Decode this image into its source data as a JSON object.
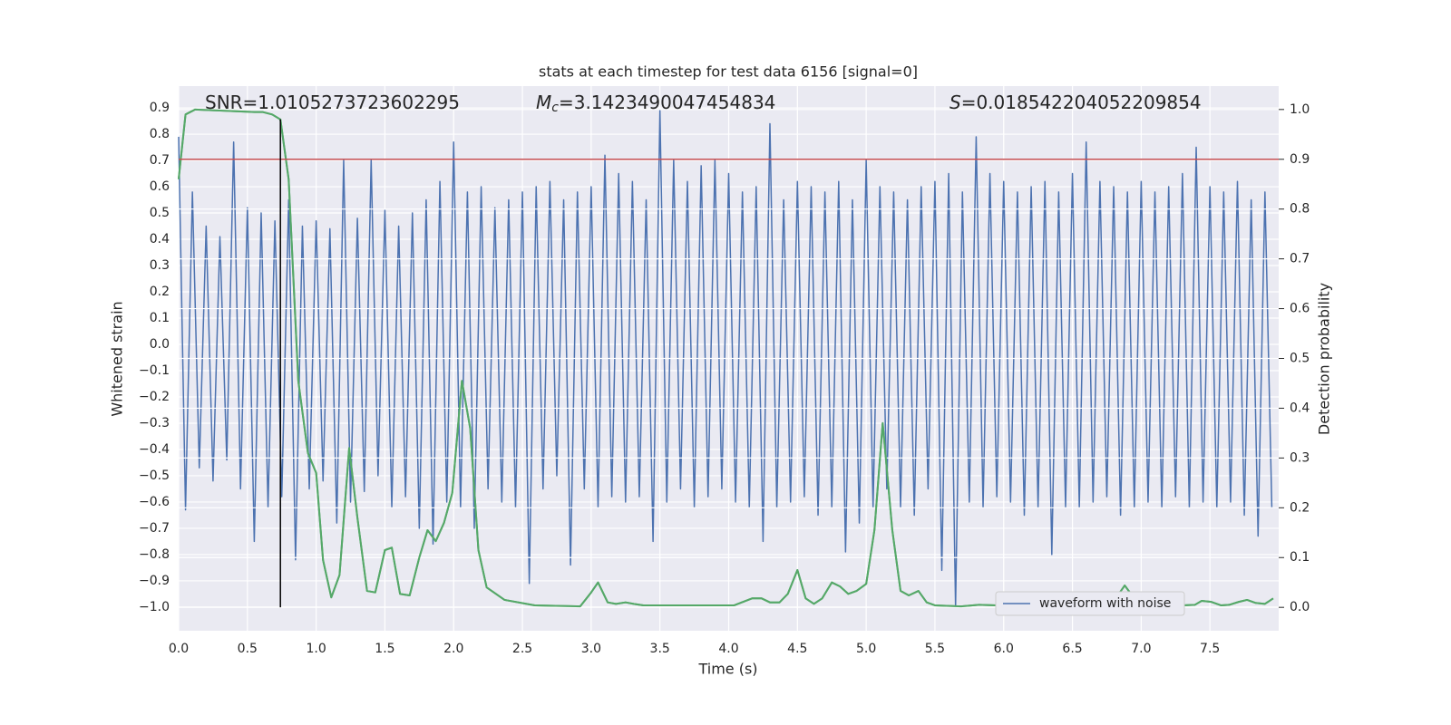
{
  "chart_data": {
    "type": "line",
    "title": "stats at each timestep for test data 6156 [signal=0]",
    "x_label": "Time (s)",
    "y_label": "Whitened strain",
    "y2_label": "Detection probability",
    "annotations": [
      {
        "text": "SNR=1.0105273723602295"
      },
      {
        "symbol": "M",
        "subscript": "c",
        "text": "=3.1423490047454834"
      },
      {
        "symbol": "S",
        "text": "=0.018542204052209854"
      }
    ],
    "xlim": [
      0,
      8
    ],
    "ylim": [
      -1.09,
      0.983
    ],
    "y2lim": [
      -0.047,
      1.047
    ],
    "xticks": [
      {
        "value": 0,
        "label": "0.0"
      },
      0.5,
      {
        "value": 1,
        "label": "1.0"
      },
      1.5,
      {
        "value": 2,
        "label": "2.0"
      },
      2.5,
      {
        "value": 3,
        "label": "3.0"
      },
      3.5,
      {
        "value": 4,
        "label": "4.0"
      },
      4.5,
      {
        "value": 5,
        "label": "5.0"
      },
      5.5,
      {
        "value": 6,
        "label": "6.0"
      },
      6.5,
      {
        "value": 7,
        "label": "7.0"
      },
      7.5
    ],
    "yticks": [
      {
        "value": -1.0,
        "label": "−1.0"
      },
      {
        "value": -0.9,
        "label": "−0.9"
      },
      {
        "value": -0.8,
        "label": "−0.8"
      },
      {
        "value": -0.7,
        "label": "−0.7"
      },
      {
        "value": -0.6,
        "label": "−0.6"
      },
      {
        "value": -0.5,
        "label": "−0.5"
      },
      {
        "value": -0.4,
        "label": "−0.4"
      },
      {
        "value": -0.3,
        "label": "−0.3"
      },
      {
        "value": -0.2,
        "label": "−0.2"
      },
      {
        "value": -0.1,
        "label": "−0.1"
      },
      {
        "value": 0,
        "label": "0.0"
      },
      0.1,
      0.2,
      0.3,
      0.4,
      0.5,
      0.6,
      0.7,
      0.8,
      0.9
    ],
    "y2ticks": [
      {
        "value": 0,
        "label": "0.0"
      },
      0.1,
      0.2,
      0.3,
      0.4,
      0.5,
      0.6,
      0.7,
      0.8,
      0.9,
      {
        "value": 1,
        "label": "1.0"
      }
    ],
    "grid": true,
    "legend": "lower right",
    "hline": {
      "value": 0.9,
      "axis": "y2",
      "color": "#c44e52"
    },
    "vline": {
      "x": 0.74,
      "ymin": 0,
      "ymax": 0.98,
      "axis": "y2",
      "color": "#000000"
    },
    "series": [
      {
        "name": "waveform with noise",
        "color": "#4c72b0",
        "x": [
          0,
          0.05,
          0.1,
          0.15,
          0.2,
          0.25,
          0.3,
          0.35,
          0.4,
          0.45,
          0.5,
          0.55,
          0.6,
          0.65,
          0.7,
          0.75,
          0.8,
          0.85,
          0.9,
          0.95,
          1,
          1.05,
          1.1,
          1.15,
          1.2,
          1.25,
          1.3,
          1.35,
          1.4,
          1.45,
          1.5,
          1.55,
          1.6,
          1.65,
          1.7,
          1.75,
          1.8,
          1.85,
          1.9,
          1.95,
          2,
          2.05,
          2.1,
          2.15,
          2.2,
          2.25,
          2.3,
          2.35,
          2.4,
          2.45,
          2.5,
          2.55,
          2.6,
          2.65,
          2.7,
          2.75,
          2.8,
          2.85,
          2.9,
          2.95,
          3,
          3.05,
          3.1,
          3.15,
          3.2,
          3.25,
          3.3,
          3.35,
          3.4,
          3.45,
          3.5,
          3.55,
          3.6,
          3.65,
          3.7,
          3.75,
          3.8,
          3.85,
          3.9,
          3.95,
          4,
          4.05,
          4.1,
          4.15,
          4.2,
          4.25,
          4.3,
          4.35,
          4.4,
          4.45,
          4.5,
          4.55,
          4.6,
          4.65,
          4.7,
          4.75,
          4.8,
          4.85,
          4.9,
          4.95,
          5,
          5.05,
          5.1,
          5.15,
          5.2,
          5.25,
          5.3,
          5.35,
          5.4,
          5.45,
          5.5,
          5.55,
          5.6,
          5.65,
          5.7,
          5.75,
          5.8,
          5.85,
          5.9,
          5.95,
          6,
          6.05,
          6.1,
          6.15,
          6.2,
          6.25,
          6.3,
          6.35,
          6.4,
          6.45,
          6.5,
          6.55,
          6.6,
          6.65,
          6.7,
          6.75,
          6.8,
          6.85,
          6.9,
          6.95,
          7,
          7.05,
          7.1,
          7.15,
          7.2,
          7.25,
          7.3,
          7.35,
          7.4,
          7.45,
          7.5,
          7.55,
          7.6,
          7.65,
          7.7,
          7.75,
          7.8,
          7.85,
          7.9,
          7.95
        ],
        "values": [
          0.79,
          -0.63,
          0.58,
          -0.47,
          0.45,
          -0.52,
          0.41,
          -0.44,
          0.77,
          -0.55,
          0.52,
          -0.75,
          0.5,
          -0.62,
          0.47,
          -0.58,
          0.55,
          -0.82,
          0.45,
          -0.55,
          0.47,
          -0.52,
          0.44,
          -0.68,
          0.7,
          -0.6,
          0.48,
          -0.56,
          0.7,
          -0.5,
          0.51,
          -0.62,
          0.45,
          -0.58,
          0.5,
          -0.7,
          0.55,
          -0.76,
          0.62,
          -0.6,
          0.77,
          -0.62,
          0.58,
          -0.7,
          0.6,
          -0.55,
          0.52,
          -0.6,
          0.55,
          -0.62,
          0.58,
          -0.91,
          0.6,
          -0.55,
          0.62,
          -0.5,
          0.55,
          -0.84,
          0.58,
          -0.55,
          0.6,
          -0.62,
          0.72,
          -0.58,
          0.65,
          -0.6,
          0.62,
          -0.58,
          0.55,
          -0.75,
          0.89,
          -0.6,
          0.7,
          -0.55,
          0.62,
          -0.62,
          0.68,
          -0.58,
          0.7,
          -0.55,
          0.65,
          -0.6,
          0.58,
          -0.62,
          0.6,
          -0.75,
          0.84,
          -0.62,
          0.55,
          -0.6,
          0.62,
          -0.58,
          0.6,
          -0.65,
          0.58,
          -0.62,
          0.62,
          -0.79,
          0.55,
          -0.68,
          0.7,
          -0.62,
          0.6,
          -0.55,
          0.58,
          -0.62,
          0.55,
          -0.65,
          0.6,
          -0.55,
          0.62,
          -0.86,
          0.65,
          -1.0,
          0.58,
          -0.6,
          0.79,
          -0.62,
          0.65,
          -0.58,
          0.62,
          -0.6,
          0.58,
          -0.65,
          0.6,
          -0.62,
          0.62,
          -0.8,
          0.58,
          -0.62,
          0.65,
          -0.62,
          0.77,
          -0.6,
          0.62,
          -0.58,
          0.6,
          -0.65,
          0.58,
          -0.62,
          0.62,
          -0.6,
          0.58,
          -0.62,
          0.6,
          -0.58,
          0.65,
          -0.62,
          0.75,
          -0.6,
          0.6,
          -0.62,
          0.58,
          -0.6,
          0.62,
          -0.65,
          0.55,
          -0.73,
          0.58,
          -0.62
        ]
      },
      {
        "color": "#55a868",
        "axis": "y2",
        "x": [
          0,
          0.05,
          0.12,
          0.55,
          0.61,
          0.68,
          0.74,
          0.8,
          0.87,
          0.94,
          1.0,
          1.05,
          1.11,
          1.17,
          1.24,
          1.3,
          1.37,
          1.43,
          1.5,
          1.55,
          1.61,
          1.68,
          1.75,
          1.81,
          1.87,
          1.93,
          1.99,
          2.06,
          2.12,
          2.18,
          2.24,
          2.37,
          2.59,
          2.92,
          3.0,
          3.05,
          3.12,
          3.18,
          3.25,
          3.31,
          3.38,
          3.71,
          4.04,
          4.17,
          4.24,
          4.3,
          4.37,
          4.43,
          4.5,
          4.56,
          4.62,
          4.68,
          4.75,
          4.81,
          4.87,
          4.93,
          5.0,
          5.06,
          5.12,
          5.19,
          5.25,
          5.31,
          5.38,
          5.44,
          5.5,
          5.69,
          5.82,
          5.95,
          6.05,
          6.12,
          6.19,
          6.26,
          6.39,
          6.51,
          6.57,
          6.63,
          6.69,
          6.76,
          6.82,
          6.88,
          6.95,
          7.01,
          7.14,
          7.3,
          7.39,
          7.44,
          7.51,
          7.58,
          7.64,
          7.71,
          7.77,
          7.83,
          7.9,
          7.96
        ],
        "values": [
          0.86,
          0.99,
          1.0,
          0.995,
          0.995,
          0.99,
          0.98,
          0.86,
          0.455,
          0.31,
          0.27,
          0.095,
          0.02,
          0.065,
          0.32,
          0.18,
          0.033,
          0.03,
          0.115,
          0.12,
          0.027,
          0.024,
          0.1,
          0.155,
          0.133,
          0.17,
          0.23,
          0.455,
          0.36,
          0.115,
          0.04,
          0.015,
          0.004,
          0.002,
          0.03,
          0.05,
          0.01,
          0.007,
          0.01,
          0.007,
          0.004,
          0.004,
          0.004,
          0.018,
          0.018,
          0.01,
          0.01,
          0.027,
          0.075,
          0.018,
          0.007,
          0.018,
          0.05,
          0.042,
          0.027,
          0.033,
          0.047,
          0.155,
          0.37,
          0.155,
          0.033,
          0.024,
          0.033,
          0.01,
          0.004,
          0.002,
          0.005,
          0.004,
          0.015,
          0.018,
          0.007,
          0.009,
          0.015,
          0.007,
          0.009,
          0.018,
          0.027,
          0.013,
          0.02,
          0.044,
          0.018,
          0.005,
          0.004,
          0.004,
          0.005,
          0.013,
          0.011,
          0.004,
          0.005,
          0.011,
          0.015,
          0.009,
          0.007,
          0.018
        ]
      }
    ]
  }
}
